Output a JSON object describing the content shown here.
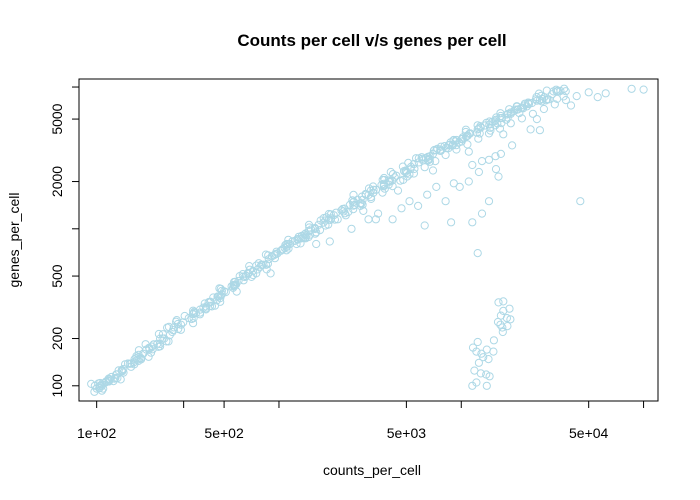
{
  "chart_data": {
    "type": "scatter",
    "title": "Counts per cell v/s genes per cell",
    "xlabel": "counts_per_cell",
    "ylabel": "genes_per_cell",
    "x_scale": "log",
    "y_scale": "log",
    "xlim": [
      80,
      120000
    ],
    "ylim": [
      80,
      9000
    ],
    "x_ticks": [
      100,
      300,
      500,
      1000,
      5000,
      10000,
      50000,
      100000
    ],
    "x_tick_labels": [
      "1e+02",
      "",
      "5e+02",
      "",
      "5e+03",
      "",
      "5e+04",
      ""
    ],
    "y_ticks": [
      100,
      200,
      500,
      1000,
      2000,
      5000,
      8000
    ],
    "y_tick_labels": [
      "100",
      "200",
      "500",
      "",
      "2000",
      "5000",
      ""
    ],
    "grid": false,
    "legend": "none",
    "marker": "open-circle",
    "point_color": "#add8e6",
    "series": [
      {
        "main_trend": [
          [
            100,
            96
          ],
          [
            104,
            100
          ],
          [
            110,
            104
          ],
          [
            118,
            110
          ],
          [
            128,
            118
          ],
          [
            140,
            128
          ],
          [
            152,
            138
          ],
          [
            165,
            150
          ],
          [
            180,
            160
          ],
          [
            195,
            172
          ],
          [
            215,
            185
          ],
          [
            235,
            200
          ],
          [
            260,
            220
          ],
          [
            290,
            245
          ],
          [
            320,
            270
          ],
          [
            350,
            290
          ],
          [
            385,
            315
          ],
          [
            420,
            340
          ],
          [
            460,
            370
          ],
          [
            500,
            400
          ],
          [
            550,
            430
          ],
          [
            600,
            465
          ],
          [
            660,
            500
          ],
          [
            720,
            540
          ],
          [
            800,
            590
          ],
          [
            880,
            640
          ],
          [
            960,
            690
          ],
          [
            1050,
            740
          ],
          [
            1150,
            800
          ],
          [
            1260,
            860
          ],
          [
            1380,
            920
          ],
          [
            1500,
            990
          ],
          [
            1650,
            1060
          ],
          [
            1800,
            1130
          ],
          [
            2000,
            1220
          ],
          [
            2200,
            1310
          ],
          [
            2450,
            1420
          ],
          [
            2700,
            1530
          ],
          [
            3000,
            1650
          ],
          [
            3300,
            1770
          ],
          [
            3650,
            1900
          ],
          [
            4000,
            2030
          ],
          [
            4400,
            2180
          ],
          [
            4850,
            2330
          ],
          [
            5300,
            2480
          ],
          [
            5850,
            2650
          ],
          [
            6400,
            2820
          ],
          [
            7000,
            3000
          ],
          [
            7700,
            3200
          ],
          [
            8500,
            3400
          ],
          [
            9300,
            3600
          ],
          [
            10200,
            3820
          ],
          [
            11200,
            4050
          ],
          [
            12300,
            4300
          ],
          [
            13500,
            4550
          ],
          [
            14800,
            4800
          ],
          [
            16200,
            5070
          ],
          [
            17800,
            5350
          ],
          [
            19500,
            5630
          ],
          [
            21500,
            5930
          ],
          [
            23500,
            6230
          ],
          [
            26000,
            6550
          ],
          [
            28500,
            6880
          ],
          [
            31500,
            7200
          ],
          [
            35000,
            7550
          ]
        ],
        "spread_points": [
          [
            130,
            112
          ],
          [
            175,
            150
          ],
          [
            230,
            200
          ],
          [
            280,
            230
          ],
          [
            340,
            270
          ],
          [
            400,
            320
          ],
          [
            480,
            375
          ],
          [
            560,
            420
          ],
          [
            640,
            470
          ],
          [
            750,
            520
          ],
          [
            850,
            590
          ],
          [
            950,
            650
          ],
          [
            1100,
            730
          ],
          [
            1250,
            800
          ],
          [
            1400,
            870
          ],
          [
            1600,
            950
          ],
          [
            1800,
            1050
          ],
          [
            2100,
            1150
          ],
          [
            2400,
            1280
          ],
          [
            2800,
            1400
          ],
          [
            3200,
            1550
          ],
          [
            3700,
            1700
          ],
          [
            4200,
            1870
          ],
          [
            4800,
            2050
          ],
          [
            5500,
            2250
          ],
          [
            6300,
            2470
          ],
          [
            7200,
            2700
          ],
          [
            8200,
            2950
          ],
          [
            9400,
            3200
          ],
          [
            10800,
            3450
          ],
          [
            12400,
            3750
          ],
          [
            14200,
            4050
          ],
          [
            16300,
            4350
          ],
          [
            18700,
            4700
          ],
          [
            21500,
            5050
          ],
          [
            24700,
            5400
          ],
          [
            28400,
            5800
          ],
          [
            32600,
            6200
          ],
          [
            37500,
            6600
          ],
          [
            43000,
            7000
          ],
          [
            50000,
            7400
          ],
          [
            900,
            520
          ],
          [
            1600,
            800
          ],
          [
            2900,
            1300
          ],
          [
            4500,
            1750
          ],
          [
            7000,
            2350
          ],
          [
            11000,
            3100
          ],
          [
            17000,
            4000
          ],
          [
            26000,
            5000
          ],
          [
            40000,
            6100
          ],
          [
            56000,
            6900
          ],
          [
            62000,
            7300
          ],
          [
            86000,
            7800
          ],
          [
            100000,
            7700
          ]
        ],
        "low_outliers": [
          [
            1900,
            830
          ],
          [
            2500,
            1000
          ],
          [
            3100,
            1150
          ],
          [
            3500,
            1250
          ],
          [
            4200,
            1150
          ],
          [
            4700,
            1350
          ],
          [
            5200,
            1500
          ],
          [
            5800,
            1400
          ],
          [
            6500,
            1650
          ],
          [
            7300,
            1850
          ],
          [
            8200,
            1500
          ],
          [
            9100,
            1950
          ],
          [
            9800,
            1850
          ],
          [
            11000,
            2000
          ],
          [
            11500,
            2550
          ],
          [
            12500,
            2300
          ],
          [
            13000,
            2700
          ],
          [
            14200,
            2750
          ],
          [
            15400,
            2900
          ],
          [
            16500,
            3000
          ],
          [
            19000,
            3400
          ],
          [
            24000,
            4300
          ],
          [
            27000,
            4250
          ],
          [
            45000,
            1500
          ],
          [
            8800,
            1100
          ],
          [
            11500,
            1100
          ],
          [
            13000,
            1250
          ],
          [
            14200,
            1500
          ],
          [
            15500,
            2400
          ],
          [
            16000,
            2150
          ],
          [
            12300,
            700
          ],
          [
            6300,
            1050
          ],
          [
            3400,
            1150
          ]
        ],
        "low_gene_cluster": [
          [
            11600,
            175
          ],
          [
            12100,
            165
          ],
          [
            12900,
            160
          ],
          [
            13200,
            152
          ],
          [
            14100,
            148
          ],
          [
            12500,
            140
          ],
          [
            11800,
            125
          ],
          [
            12800,
            120
          ],
          [
            13700,
            118
          ],
          [
            12100,
            105
          ],
          [
            11500,
            100
          ],
          [
            13800,
            100
          ],
          [
            15100,
            195
          ],
          [
            15900,
            255
          ],
          [
            16800,
            235
          ],
          [
            16400,
            245
          ],
          [
            17800,
            270
          ],
          [
            17000,
            300
          ],
          [
            18400,
            310
          ],
          [
            18600,
            265
          ],
          [
            17900,
            240
          ],
          [
            16500,
            280
          ],
          [
            14300,
            115
          ],
          [
            16000,
            340
          ],
          [
            17000,
            345
          ],
          [
            16900,
            220
          ],
          [
            15000,
            165
          ],
          [
            12300,
            190
          ],
          [
            13800,
            170
          ]
        ]
      }
    ]
  }
}
